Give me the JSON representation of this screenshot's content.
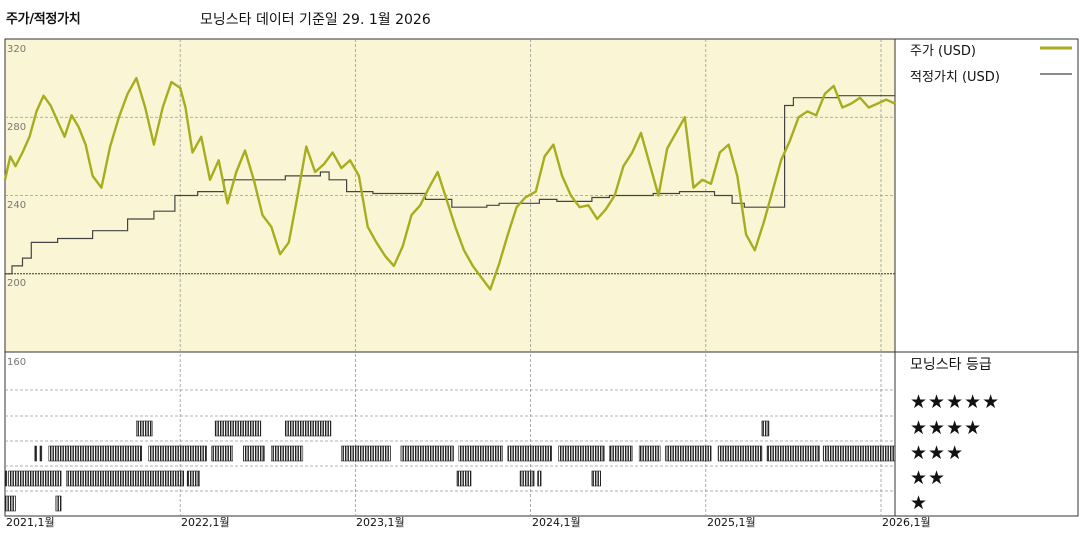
{
  "header": {
    "title": "주가/적정가치",
    "subtitle": "모닝스타 데이터 기준일 29. 1월 2026"
  },
  "colors": {
    "price": "#a8ad1f",
    "fair": "#444444",
    "plot_bg": "#faf6d5",
    "bars": "#222222"
  },
  "legend": {
    "price_label": "주가 (USD)",
    "fair_label": "적정가치 (USD)",
    "rating_title": "모닝스타 등급"
  },
  "ratings": [
    "★★★★★",
    "★★★★",
    "★★★",
    "★★",
    "★"
  ],
  "chart_data": [
    {
      "type": "line",
      "title": "",
      "xlabel": "",
      "ylabel": "",
      "x_ticks": [
        "2021,1월",
        "2022,1월",
        "2023,1월",
        "2024,1월",
        "2025,1월",
        "2026,1월"
      ],
      "y_ticks": [
        "320",
        "280",
        "240",
        "200",
        "160"
      ],
      "ylim": [
        160,
        320
      ],
      "xlim": [
        2021.0,
        2026.08
      ],
      "legend_position": "top-right",
      "grid": true,
      "series": [
        {
          "name": "주가 (USD)",
          "x": [
            2021.0,
            2021.03,
            2021.06,
            2021.1,
            2021.14,
            2021.18,
            2021.22,
            2021.26,
            2021.3,
            2021.34,
            2021.38,
            2021.42,
            2021.46,
            2021.5,
            2021.55,
            2021.6,
            2021.65,
            2021.7,
            2021.75,
            2021.8,
            2021.85,
            2021.9,
            2021.95,
            2022.0,
            2022.03,
            2022.07,
            2022.12,
            2022.17,
            2022.22,
            2022.27,
            2022.32,
            2022.37,
            2022.42,
            2022.47,
            2022.52,
            2022.57,
            2022.62,
            2022.67,
            2022.72,
            2022.77,
            2022.82,
            2022.87,
            2022.92,
            2022.97,
            2023.02,
            2023.07,
            2023.12,
            2023.17,
            2023.22,
            2023.27,
            2023.32,
            2023.37,
            2023.42,
            2023.47,
            2023.52,
            2023.57,
            2023.62,
            2023.67,
            2023.72,
            2023.77,
            2023.82,
            2023.87,
            2023.92,
            2023.97,
            2024.03,
            2024.08,
            2024.13,
            2024.18,
            2024.23,
            2024.28,
            2024.33,
            2024.38,
            2024.43,
            2024.48,
            2024.53,
            2024.58,
            2024.63,
            2024.68,
            2024.73,
            2024.78,
            2024.83,
            2024.88,
            2024.93,
            2024.98,
            2025.03,
            2025.08,
            2025.13,
            2025.18,
            2025.23,
            2025.28,
            2025.33,
            2025.38,
            2025.43,
            2025.48,
            2025.53,
            2025.58,
            2025.63,
            2025.68,
            2025.73,
            2025.78,
            2025.83,
            2025.88,
            2025.93,
            2025.98,
            2026.03,
            2026.08
          ],
          "values": [
            248,
            260,
            255,
            262,
            270,
            283,
            291,
            286,
            278,
            270,
            281,
            275,
            266,
            250,
            244,
            265,
            280,
            292,
            300,
            285,
            266,
            285,
            298,
            295,
            285,
            262,
            270,
            248,
            258,
            236,
            252,
            263,
            248,
            230,
            224,
            210,
            216,
            240,
            265,
            252,
            256,
            262,
            254,
            258,
            250,
            224,
            216,
            209,
            204,
            214,
            230,
            235,
            244,
            252,
            238,
            224,
            212,
            204,
            198,
            192,
            205,
            220,
            234,
            239,
            242,
            260,
            266,
            250,
            240,
            234,
            235,
            228,
            233,
            240,
            255,
            262,
            272,
            256,
            240,
            264,
            272,
            280,
            244,
            248,
            246,
            262,
            266,
            250,
            220,
            212,
            226,
            242,
            258,
            268,
            280,
            283,
            281,
            292,
            296,
            285,
            287,
            290,
            285,
            287,
            289,
            287
          ]
        },
        {
          "name": "적정가치 (USD)",
          "x": [
            2021.0,
            2021.04,
            2021.04,
            2021.1,
            2021.1,
            2021.15,
            2021.15,
            2021.3,
            2021.3,
            2021.5,
            2021.5,
            2021.7,
            2021.7,
            2021.85,
            2021.85,
            2021.97,
            2021.97,
            2022.1,
            2022.1,
            2022.25,
            2022.25,
            2022.6,
            2022.6,
            2022.8,
            2022.8,
            2022.85,
            2022.85,
            2022.95,
            2022.95,
            2023.1,
            2023.1,
            2023.4,
            2023.4,
            2023.55,
            2023.55,
            2023.75,
            2023.75,
            2023.82,
            2023.82,
            2024.05,
            2024.05,
            2024.15,
            2024.15,
            2024.35,
            2024.35,
            2024.45,
            2024.45,
            2024.7,
            2024.7,
            2024.85,
            2024.85,
            2025.05,
            2025.05,
            2025.15,
            2025.15,
            2025.22,
            2025.22,
            2025.45,
            2025.45,
            2025.5,
            2025.5,
            2025.75,
            2025.75,
            2026.08
          ],
          "values": [
            200,
            200,
            204,
            204,
            208,
            208,
            216,
            216,
            218,
            218,
            222,
            222,
            228,
            228,
            232,
            232,
            240,
            240,
            242,
            242,
            248,
            248,
            250,
            250,
            252,
            252,
            248,
            248,
            242,
            242,
            241,
            241,
            238,
            238,
            234,
            234,
            235,
            235,
            236,
            236,
            238,
            238,
            237,
            237,
            239,
            239,
            240,
            240,
            241,
            241,
            242,
            242,
            240,
            240,
            236,
            236,
            234,
            234,
            286,
            286,
            290,
            290,
            291,
            291
          ]
        }
      ]
    },
    {
      "type": "bar",
      "title": "모닝스타 등급",
      "xlabel": "",
      "ylabel": "",
      "categories": [
        "★★★★★",
        "★★★★",
        "★★★",
        "★★",
        "★"
      ],
      "xlim": [
        2021.0,
        2026.08
      ],
      "segments": [
        {
          "rating": 4,
          "start": 2021.75,
          "end": 2021.84
        },
        {
          "rating": 4,
          "start": 2022.2,
          "end": 2022.46
        },
        {
          "rating": 4,
          "start": 2022.6,
          "end": 2022.86
        },
        {
          "rating": 4,
          "start": 2025.32,
          "end": 2025.36
        },
        {
          "rating": 3,
          "start": 2021.17,
          "end": 2021.18
        },
        {
          "rating": 3,
          "start": 2021.2,
          "end": 2021.21
        },
        {
          "rating": 3,
          "start": 2021.25,
          "end": 2021.78
        },
        {
          "rating": 3,
          "start": 2021.82,
          "end": 2022.15
        },
        {
          "rating": 3,
          "start": 2022.18,
          "end": 2022.3
        },
        {
          "rating": 3,
          "start": 2022.36,
          "end": 2022.48
        },
        {
          "rating": 3,
          "start": 2022.52,
          "end": 2022.7
        },
        {
          "rating": 3,
          "start": 2022.92,
          "end": 2023.2
        },
        {
          "rating": 3,
          "start": 2023.26,
          "end": 2023.56
        },
        {
          "rating": 3,
          "start": 2023.59,
          "end": 2023.84
        },
        {
          "rating": 3,
          "start": 2023.87,
          "end": 2024.12
        },
        {
          "rating": 3,
          "start": 2024.16,
          "end": 2024.42
        },
        {
          "rating": 3,
          "start": 2024.45,
          "end": 2024.58
        },
        {
          "rating": 3,
          "start": 2024.62,
          "end": 2024.74
        },
        {
          "rating": 3,
          "start": 2024.77,
          "end": 2025.03
        },
        {
          "rating": 3,
          "start": 2025.07,
          "end": 2025.32
        },
        {
          "rating": 3,
          "start": 2025.35,
          "end": 2025.65
        },
        {
          "rating": 3,
          "start": 2025.67,
          "end": 2026.08
        },
        {
          "rating": 2,
          "start": 2021.0,
          "end": 2021.01
        },
        {
          "rating": 2,
          "start": 2021.02,
          "end": 2021.32
        },
        {
          "rating": 2,
          "start": 2021.35,
          "end": 2022.02
        },
        {
          "rating": 2,
          "start": 2022.04,
          "end": 2022.11
        },
        {
          "rating": 2,
          "start": 2023.58,
          "end": 2023.66
        },
        {
          "rating": 2,
          "start": 2023.94,
          "end": 2024.02
        },
        {
          "rating": 2,
          "start": 2024.04,
          "end": 2024.06
        },
        {
          "rating": 2,
          "start": 2024.35,
          "end": 2024.4
        },
        {
          "rating": 1,
          "start": 2021.0,
          "end": 2021.06
        },
        {
          "rating": 1,
          "start": 2021.29,
          "end": 2021.32
        }
      ]
    }
  ]
}
